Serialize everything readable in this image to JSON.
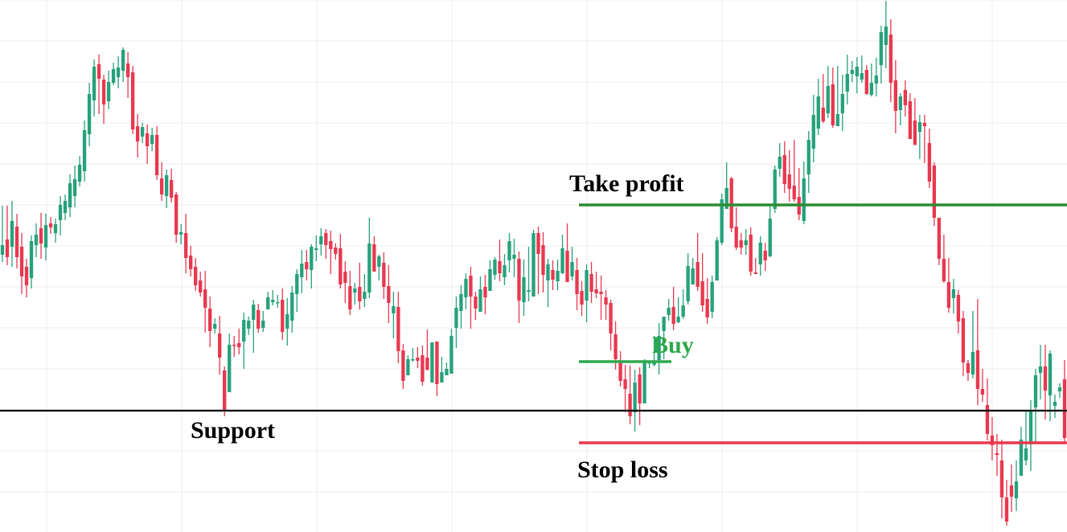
{
  "chart_data": {
    "type": "candlestick",
    "title": "",
    "xlabel": "",
    "ylabel": "",
    "ylim": [
      0,
      662
    ],
    "grid": true,
    "colors": {
      "up": "#26a17b",
      "down": "#e8384f",
      "support": "#000000",
      "take_profit": "#2e8b32",
      "stop_loss": "#e8384f",
      "buy": "#2ea84a",
      "grid": "#ececec"
    },
    "levels": {
      "support": {
        "label": "Support",
        "value": 151
      },
      "take_profit": {
        "label": "Take profit",
        "value": 407
      },
      "stop_loss": {
        "label": "Stop loss",
        "value": 111
      },
      "buy": {
        "label": "Buy",
        "value": 212
      }
    },
    "candles": [
      [
        345,
        357,
        406,
        336
      ],
      [
        364,
        342,
        406,
        332
      ],
      [
        355,
        387,
        412,
        330
      ],
      [
        380,
        342,
        396,
        328
      ],
      [
        355,
        318,
        372,
        296
      ],
      [
        330,
        307,
        340,
        292
      ],
      [
        316,
        362,
        369,
        303
      ],
      [
        357,
        370,
        384,
        342
      ],
      [
        378,
        359,
        397,
        340
      ],
      [
        354,
        382,
        396,
        338
      ],
      [
        384,
        379,
        392,
        371
      ],
      [
        372,
        383,
        390,
        360
      ],
      [
        388,
        407,
        418,
        369
      ],
      [
        397,
        412,
        420,
        388
      ],
      [
        404,
        434,
        445,
        392
      ],
      [
        418,
        439,
        456,
        404
      ],
      [
        436,
        457,
        468,
        430
      ],
      [
        449,
        500,
        512,
        436
      ],
      [
        495,
        545,
        559,
        480
      ],
      [
        537,
        579,
        588,
        517
      ],
      [
        582,
        564,
        594,
        520
      ],
      [
        563,
        532,
        569,
        508
      ],
      [
        536,
        560,
        574,
        526
      ],
      [
        559,
        576,
        584,
        556
      ],
      [
        566,
        578,
        592,
        552
      ],
      [
        574,
        600,
        603,
        560
      ],
      [
        583,
        566,
        597,
        540
      ],
      [
        572,
        501,
        580,
        495
      ],
      [
        505,
        486,
        520,
        466
      ],
      [
        492,
        504,
        509,
        484
      ],
      [
        496,
        480,
        507,
        458
      ],
      [
        483,
        494,
        503,
        474
      ],
      [
        494,
        444,
        505,
        438
      ],
      [
        440,
        420,
        460,
        412
      ],
      [
        418,
        444,
        451,
        403
      ],
      [
        438,
        416,
        452,
        410
      ],
      [
        420,
        370,
        423,
        360
      ],
      [
        370,
        373,
        383,
        358
      ],
      [
        372,
        341,
        396,
        322
      ],
      [
        344,
        327,
        356,
        318
      ],
      [
        330,
        307,
        341,
        300
      ],
      [
        313,
        298,
        324,
        293
      ],
      [
        302,
        279,
        325,
        248
      ],
      [
        278,
        250,
        293,
        230
      ],
      [
        253,
        259,
        266,
        247
      ],
      [
        247,
        217,
        269,
        196
      ],
      [
        201,
        151,
        206,
        144
      ],
      [
        174,
        233,
        247,
        189
      ],
      [
        233,
        232,
        244,
        218
      ],
      [
        235,
        230,
        253,
        221
      ],
      [
        237,
        264,
        273,
        203
      ],
      [
        253,
        263,
        268,
        245
      ],
      [
        264,
        283,
        289,
        223
      ],
      [
        276,
        253,
        284,
        248
      ],
      [
        254,
        263,
        275,
        249
      ],
      [
        277,
        292,
        299,
        290
      ],
      [
        286,
        289,
        301,
        282
      ],
      [
        286,
        286,
        295,
        279
      ],
      [
        289,
        249,
        303,
        239
      ],
      [
        253,
        271,
        291,
        232
      ],
      [
        263,
        298,
        306,
        248
      ],
      [
        296,
        321,
        327,
        274
      ],
      [
        317,
        334,
        351,
        297
      ],
      [
        336,
        327,
        351,
        313
      ],
      [
        326,
        355,
        358,
        303
      ],
      [
        351,
        353,
        369,
        337
      ],
      [
        358,
        368,
        378,
        344
      ],
      [
        372,
        357,
        377,
        340
      ],
      [
        362,
        352,
        375,
        321
      ],
      [
        354,
        346,
        359,
        339
      ],
      [
        353,
        308,
        371,
        303
      ],
      [
        324,
        310,
        337,
        285
      ],
      [
        306,
        277,
        325,
        270
      ],
      [
        298,
        303,
        310,
        283
      ],
      [
        305,
        287,
        335,
        277
      ],
      [
        290,
        299,
        321,
        280
      ],
      [
        298,
        359,
        391,
        291
      ],
      [
        358,
        324,
        368,
        329
      ],
      [
        330,
        343,
        345,
        313
      ],
      [
        335,
        305,
        348,
        290
      ],
      [
        306,
        285,
        332,
        260
      ],
      [
        272,
        281,
        299,
        241
      ],
      [
        280,
        225,
        299,
        210
      ],
      [
        226,
        188,
        234,
        178
      ],
      [
        195,
        215,
        220,
        201
      ],
      [
        215,
        215,
        229,
        212
      ],
      [
        217,
        213,
        230,
        204
      ],
      [
        220,
        187,
        232,
        182
      ],
      [
        217,
        202,
        252,
        201
      ],
      [
        186,
        236,
        227,
        196
      ],
      [
        237,
        184,
        221,
        169
      ],
      [
        186,
        199,
        218,
        189
      ],
      [
        195,
        203,
        211,
        195
      ],
      [
        197,
        244,
        253,
        231
      ],
      [
        254,
        279,
        293,
        229
      ],
      [
        275,
        296,
        307,
        253
      ],
      [
        292,
        315,
        322,
        277
      ],
      [
        319,
        293,
        330,
        253
      ],
      [
        293,
        278,
        299,
        264
      ],
      [
        274,
        302,
        318,
        281
      ],
      [
        305,
        292,
        320,
        271
      ],
      [
        300,
        327,
        338,
        315
      ],
      [
        320,
        339,
        342,
        314
      ],
      [
        337,
        322,
        364,
        312
      ],
      [
        317,
        332,
        346,
        307
      ],
      [
        338,
        362,
        372,
        323
      ],
      [
        340,
        345,
        365,
        317
      ],
      [
        340,
        288,
        349,
        260
      ],
      [
        286,
        317,
        339,
        269
      ],
      [
        299,
        301,
        355,
        287
      ],
      [
        293,
        372,
        376,
        301
      ],
      [
        372,
        346,
        380,
        296
      ],
      [
        357,
        320,
        373,
        298
      ],
      [
        313,
        333,
        340,
        280
      ],
      [
        326,
        314,
        338,
        301
      ],
      [
        312,
        325,
        339,
        301
      ],
      [
        322,
        353,
        370,
        321
      ],
      [
        350,
        311,
        384,
        312
      ],
      [
        318,
        336,
        355,
        313
      ],
      [
        326,
        296,
        341,
        276
      ],
      [
        300,
        283,
        312,
        269
      ],
      [
        288,
        326,
        333,
        261
      ],
      [
        321,
        299,
        336,
        285
      ],
      [
        302,
        297,
        324,
        291
      ],
      [
        299,
        296,
        319,
        264
      ],
      [
        292,
        283,
        301,
        264
      ],
      [
        285,
        247,
        289,
        226
      ],
      [
        246,
        215,
        262,
        202
      ],
      [
        212,
        188,
        225,
        181
      ],
      [
        190,
        178,
        208,
        149
      ],
      [
        172,
        144,
        207,
        134
      ],
      [
        149,
        186,
        202,
        125
      ],
      [
        196,
        160,
        205,
        133
      ],
      [
        160,
        212,
        215,
        200
      ],
      [
        211,
        211,
        213,
        204
      ],
      [
        208,
        212,
        244,
        206
      ],
      [
        214,
        244,
        260,
        196
      ],
      [
        250,
        268,
        268,
        215
      ],
      [
        270,
        279,
        290,
        263
      ],
      [
        280,
        259,
        305,
        251
      ],
      [
        261,
        268,
        292,
        260
      ],
      [
        268,
        282,
        302,
        265
      ],
      [
        287,
        331,
        347,
        283
      ],
      [
        308,
        328,
        341,
        310
      ],
      [
        336,
        305,
        372,
        300
      ],
      [
        312,
        282,
        347,
        274
      ],
      [
        290,
        267,
        316,
        259
      ],
      [
        274,
        311,
        319,
        266
      ],
      [
        313,
        363,
        367,
        313
      ],
      [
        360,
        414,
        421,
        357
      ],
      [
        402,
        428,
        460,
        403
      ],
      [
        440,
        378,
        442,
        373
      ],
      [
        380,
        354,
        404,
        351
      ],
      [
        363,
        354,
        372,
        345
      ],
      [
        357,
        363,
        377,
        345
      ],
      [
        370,
        324,
        379,
        319
      ],
      [
        323,
        321,
        341,
        325
      ],
      [
        333,
        360,
        368,
        319
      ],
      [
        350,
        338,
        360,
        325
      ],
      [
        343,
        390,
        406,
        342
      ],
      [
        402,
        451,
        456,
        397
      ],
      [
        452,
        467,
        484,
        442
      ],
      [
        469,
        433,
        486,
        422
      ],
      [
        445,
        427,
        475,
        411
      ],
      [
        431,
        414,
        488,
        411
      ],
      [
        417,
        395,
        453,
        388
      ],
      [
        387,
        440,
        461,
        383
      ],
      [
        445,
        488,
        499,
        422
      ],
      [
        477,
        519,
        544,
        460
      ],
      [
        502,
        542,
        564,
        494
      ],
      [
        528,
        511,
        570,
        509
      ],
      [
        521,
        555,
        580,
        515
      ],
      [
        557,
        506,
        578,
        503
      ],
      [
        505,
        520,
        580,
        509
      ],
      [
        521,
        545,
        569,
        499
      ],
      [
        548,
        570,
        594,
        532
      ],
      [
        570,
        575,
        586,
        560
      ],
      [
        567,
        579,
        591,
        546
      ],
      [
        563,
        571,
        593,
        559
      ],
      [
        575,
        545,
        581,
        544
      ],
      [
        544,
        559,
        583,
        542
      ],
      [
        558,
        568,
        590,
        542
      ],
      [
        581,
        622,
        630,
        558
      ],
      [
        606,
        629,
        661,
        577
      ],
      [
        619,
        559,
        638,
        535
      ],
      [
        562,
        524,
        587,
        496
      ],
      [
        525,
        542,
        546,
        506
      ],
      [
        550,
        531,
        562,
        517
      ],
      [
        536,
        489,
        546,
        493
      ],
      [
        512,
        482,
        540,
        481
      ],
      [
        498,
        510,
        519,
        464
      ],
      [
        509,
        505,
        519,
        459
      ],
      [
        484,
        436,
        502,
        428
      ],
      [
        456,
        391,
        460,
        381
      ],
      [
        391,
        340,
        391,
        332
      ],
      [
        340,
        312,
        370,
        310
      ],
      [
        311,
        279,
        341,
        273
      ],
      [
        291,
        302,
        315,
        272
      ],
      [
        295,
        262,
        301,
        247
      ],
      [
        266,
        211,
        275,
        194
      ],
      [
        210,
        198,
        214,
        188
      ],
      [
        196,
        224,
        275,
        191
      ],
      [
        226,
        178,
        290,
        158
      ],
      [
        178,
        171,
        203,
        162
      ],
      [
        158,
        122,
        191,
        114
      ],
      [
        120,
        108,
        143,
        89
      ],
      [
        98,
        96,
        122,
        70
      ],
      [
        89,
        43,
        115,
        17
      ],
      [
        43,
        13,
        65,
        8
      ],
      [
        58,
        44,
        84,
        25
      ],
      [
        42,
        63,
        89,
        26
      ],
      [
        70,
        115,
        131,
        102
      ],
      [
        89,
        104,
        150,
        83
      ],
      [
        109,
        152,
        164,
        76
      ],
      [
        155,
        195,
        203,
        110
      ],
      [
        198,
        206,
        233,
        165
      ],
      [
        206,
        176,
        233,
        140
      ],
      [
        170,
        222,
        226,
        138
      ],
      [
        157,
        162,
        171,
        142
      ],
      [
        175,
        180,
        185,
        167
      ],
      [
        190,
        117,
        214,
        112
      ]
    ]
  },
  "annotations": {
    "support_label": "Support",
    "take_profit_label": "Take profit",
    "stop_loss_label": "Stop loss",
    "buy_label": "Buy"
  }
}
